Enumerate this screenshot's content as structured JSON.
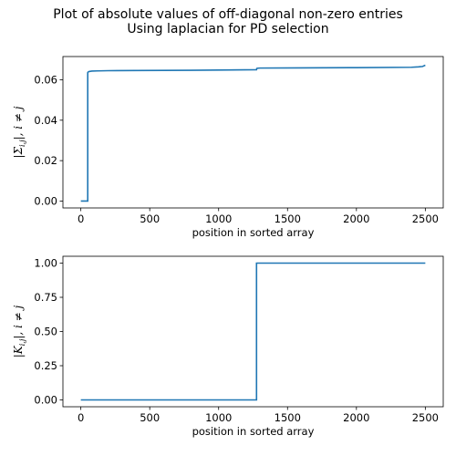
{
  "figure": {
    "title_line1": "Plot of absolute values of off-diagonal non-zero entries",
    "title_line2": "Using laplacian for PD selection"
  },
  "chart_data": [
    {
      "type": "line",
      "title": "",
      "xlabel": "position in sorted array",
      "ylabel": "|Σi,j|, i ≠ j",
      "xlim": [
        -130,
        2630
      ],
      "ylim": [
        -0.0034,
        0.0715
      ],
      "xticks": [
        0,
        500,
        1000,
        1500,
        2000,
        2500
      ],
      "xtick_labels": [
        "0",
        "500",
        "1000",
        "1500",
        "2000",
        "2500"
      ],
      "yticks": [
        0.0,
        0.02,
        0.04,
        0.06
      ],
      "ytick_labels": [
        "0.00",
        "0.02",
        "0.04",
        "0.06"
      ],
      "grid": false,
      "color": "#1f77b4",
      "series": [
        {
          "x": [
            0,
            50,
            50,
            52,
            60,
            80,
            120,
            200,
            400,
            800,
            1275,
            1276,
            1277,
            1280,
            1300,
            1600,
            2000,
            2400,
            2450,
            2480,
            2500
          ],
          "y": [
            0.0,
            0.0,
            0.0635,
            0.0638,
            0.0641,
            0.0643,
            0.0644,
            0.0645,
            0.0646,
            0.0647,
            0.065,
            0.0653,
            0.0656,
            0.0657,
            0.0658,
            0.0659,
            0.066,
            0.0662,
            0.0664,
            0.0666,
            0.0672
          ]
        }
      ]
    },
    {
      "type": "line",
      "title": "",
      "xlabel": "position in sorted array",
      "ylabel": "|Ki,j|, i ≠ j",
      "xlim": [
        -130,
        2630
      ],
      "ylim": [
        -0.05,
        1.05
      ],
      "xticks": [
        0,
        500,
        1000,
        1500,
        2000,
        2500
      ],
      "xtick_labels": [
        "0",
        "500",
        "1000",
        "1500",
        "2000",
        "2500"
      ],
      "yticks": [
        0.0,
        0.25,
        0.5,
        0.75,
        1.0
      ],
      "ytick_labels": [
        "0.00",
        "0.25",
        "0.50",
        "0.75",
        "1.00"
      ],
      "grid": false,
      "color": "#1f77b4",
      "series": [
        {
          "x": [
            0,
            1275,
            1275,
            2500
          ],
          "y": [
            0.0,
            0.0,
            1.0,
            1.0
          ]
        }
      ]
    }
  ]
}
